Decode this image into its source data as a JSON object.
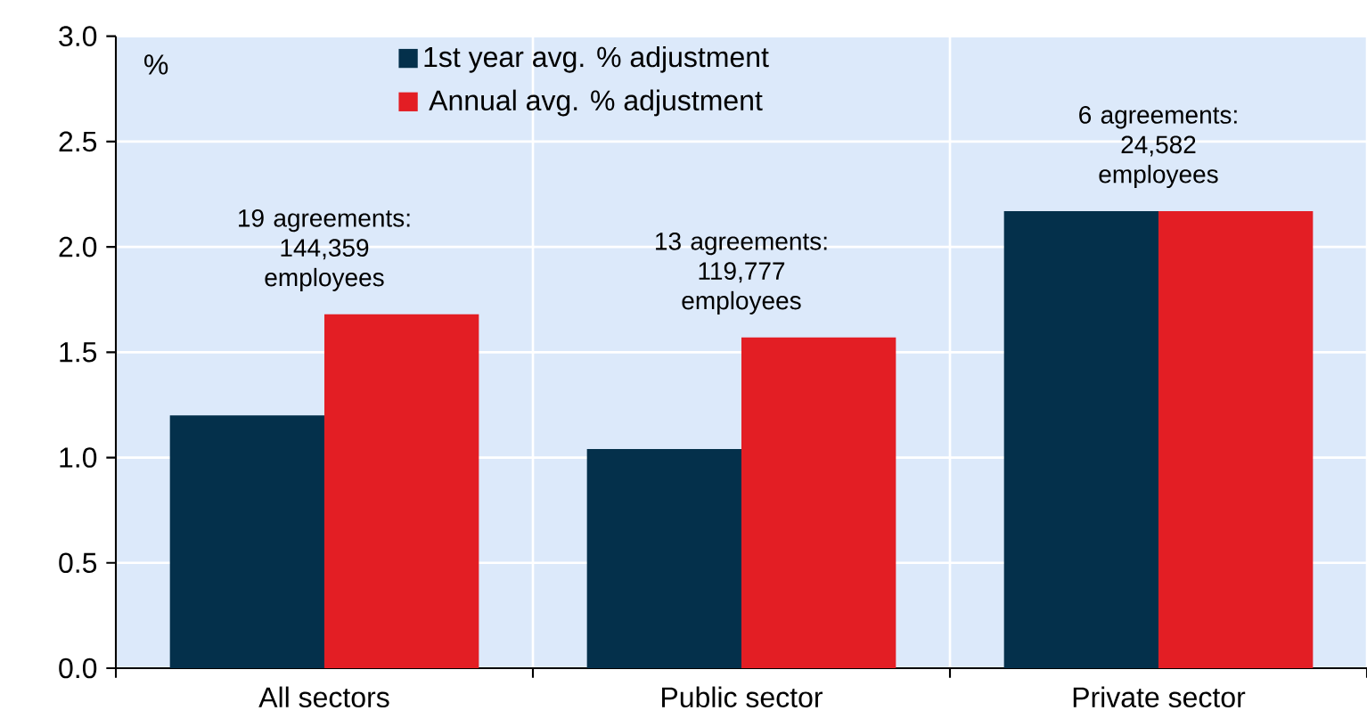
{
  "chart_data": {
    "type": "bar",
    "categories": [
      "All sectors",
      "Public sector",
      "Private sector"
    ],
    "series": [
      {
        "name": "1st year avg. % adjustment",
        "color": "#04304b",
        "values": [
          1.2,
          1.04,
          2.17
        ]
      },
      {
        "name": "Annual avg. % adjustment",
        "color": "#e31e24",
        "values": [
          1.68,
          1.57,
          2.17
        ]
      }
    ],
    "ylim": [
      0,
      3
    ],
    "yticks": [
      {
        "value": 0,
        "label": "0.0"
      },
      {
        "value": 0.5,
        "label": "0.5"
      },
      {
        "value": 1,
        "label": "1.0"
      },
      {
        "value": 1.5,
        "label": "1.5"
      },
      {
        "value": 2,
        "label": "2.0"
      },
      {
        "value": 2.5,
        "label": "2.5"
      },
      {
        "value": 3,
        "label": "3.0"
      }
    ],
    "annotations": [
      "%",
      "19 agreements: 144,359 employees",
      "13 agreements: 119,777 employees",
      "6 agreements: 24,582 employees"
    ],
    "grid": true,
    "legend": "top"
  }
}
